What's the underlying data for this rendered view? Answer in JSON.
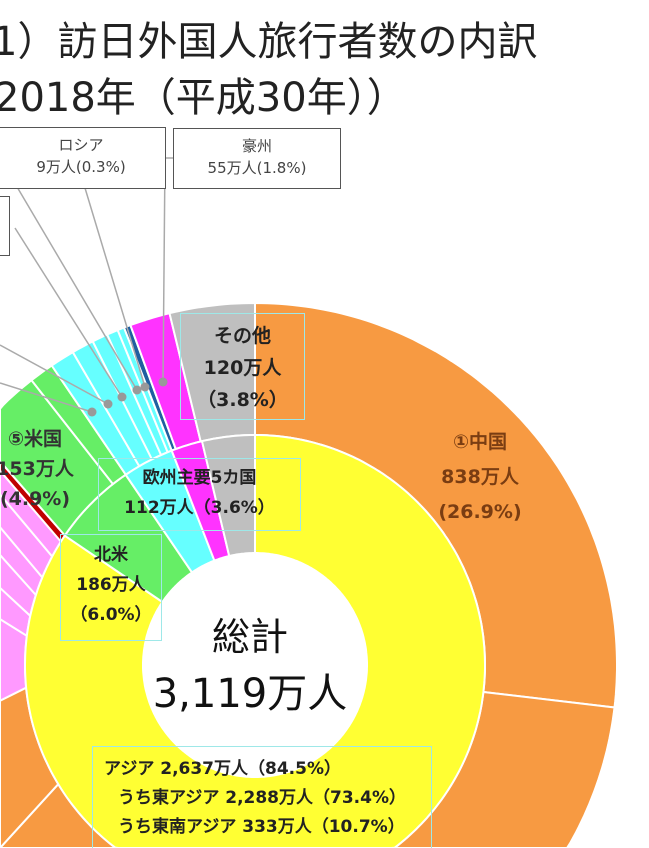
{
  "title": {
    "line1": "1）訪日外国人旅行者数の内訳",
    "line2": "2018年（平成30年））"
  },
  "callouts": {
    "russia": {
      "name": "ロシア",
      "value": "9万人(0.3%)"
    },
    "australia": {
      "name": "豪州",
      "value": "55万人(1.8%)"
    }
  },
  "labels": {
    "other": {
      "name": "その他",
      "value": "120万人",
      "pct": "（3.8%）"
    },
    "china": {
      "name": "①中国",
      "value": "838万人",
      "pct": "(26.9%)"
    },
    "usa": {
      "name": "⑤米国",
      "value": "153万人",
      "pct": "(4.9%)"
    },
    "europe5": {
      "name": "欧州主要5カ国",
      "value": "112万人（3.6%）"
    },
    "north_america": {
      "name": "北米",
      "value": "186万人",
      "pct": "（6.0%）"
    },
    "total": {
      "name": "総計",
      "value": "3,119万人"
    },
    "asia": {
      "line1": "アジア  2,637万人（84.5%）",
      "line2": "うち東アジア  2,288万人（73.4%）",
      "line3": "うち東南アジア 333万人（10.7%）"
    }
  },
  "chart_data": {
    "type": "donut",
    "title": "1）訪日外国人旅行者数の内訳 2018年（平成30年））",
    "total": 3119,
    "unit": "万人",
    "outer_ring": [
      {
        "name": "①中国",
        "value": 838,
        "pct": 26.9,
        "color": "#F79A42"
      },
      {
        "value": 754,
        "pct": 24.2,
        "color": "#F79A42"
      },
      {
        "value": 476,
        "pct": 15.3,
        "color": "#F79A42"
      },
      {
        "value": 221,
        "pct": 7.1,
        "color": "#F79A42"
      },
      {
        "value": 113,
        "pct": 3.6,
        "color": "#FF99FF"
      },
      {
        "value": 44,
        "pct": 1.4,
        "color": "#FF99FF"
      },
      {
        "value": 47,
        "pct": 1.5,
        "color": "#FF99FF"
      },
      {
        "value": 40,
        "pct": 1.3,
        "color": "#FF99FF"
      },
      {
        "value": 50,
        "pct": 1.6,
        "color": "#FF99FF"
      },
      {
        "value": 39,
        "pct": 1.2,
        "color": "#FF99FF"
      },
      {
        "value": 15,
        "pct": 0.5,
        "color": "#C00000"
      },
      {
        "name": "⑤米国",
        "value": 153,
        "pct": 4.9,
        "color": "#66EE66"
      },
      {
        "value": 33,
        "pct": 1.1,
        "color": "#66EE66"
      },
      {
        "value": 34,
        "pct": 1.1,
        "color": "#66FFFF"
      },
      {
        "value": 30,
        "pct": 1.0,
        "color": "#66FFFF"
      },
      {
        "value": 22,
        "pct": 0.7,
        "color": "#66FFFF"
      },
      {
        "value": 15,
        "pct": 0.5,
        "color": "#66FFFF"
      },
      {
        "value": 10,
        "pct": 0.3,
        "color": "#66FFFF"
      },
      {
        "name": "ロシア",
        "value": 9,
        "pct": 0.3,
        "color": "#1F5FA0"
      },
      {
        "name": "豪州",
        "value": 55,
        "pct": 1.8,
        "color": "#FF33FF"
      },
      {
        "name": "その他",
        "value": 120,
        "pct": 3.8,
        "color": "#BFBFBF"
      }
    ],
    "inner_ring": [
      {
        "name": "アジア",
        "value": 2637,
        "pct": 84.5,
        "color": "#FFFF33"
      },
      {
        "name": "北米",
        "value": 186,
        "pct": 6.0,
        "color": "#66EE66"
      },
      {
        "name": "欧州主要5カ国",
        "value": 112,
        "pct": 3.6,
        "color": "#66FFFF"
      },
      {
        "value": 69,
        "pct": 2.2,
        "color": "#FF33FF"
      },
      {
        "value": 115,
        "pct": 3.7,
        "color": "#BFBFBF"
      }
    ]
  }
}
